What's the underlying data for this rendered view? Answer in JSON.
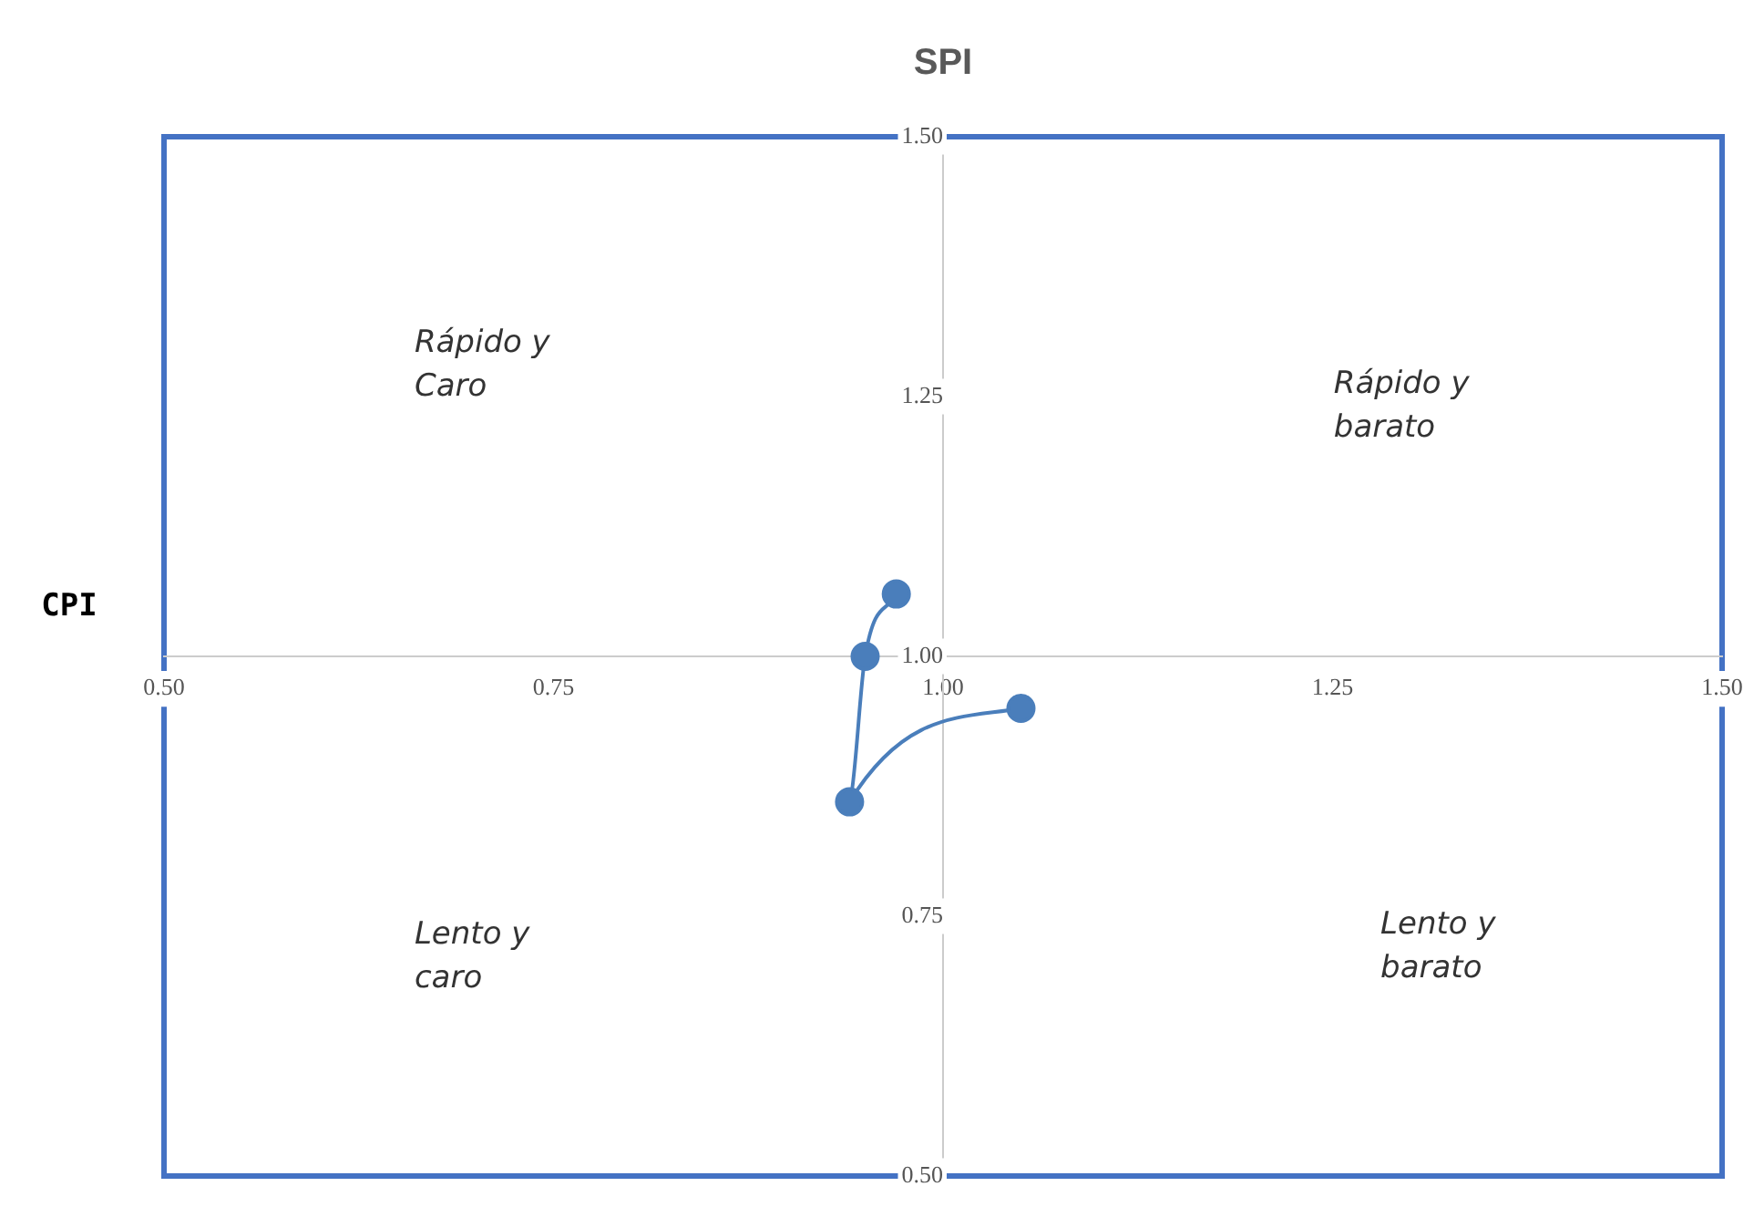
{
  "chart_data": {
    "type": "line",
    "title": "SPI",
    "ylabel": "CPI",
    "x": [
      1.05,
      0.94,
      0.95,
      0.97
    ],
    "series": [
      {
        "color": "#4a7ebb",
        "values": [
          0.95,
          0.86,
          1.0,
          1.06
        ]
      }
    ],
    "xlim": [
      0.5,
      1.5
    ],
    "ylim": [
      0.5,
      1.5
    ],
    "xticks": [
      {
        "value": 0.5,
        "label": "0.50"
      },
      {
        "value": 0.75,
        "label": "0.75"
      },
      {
        "value": 1.0,
        "label": "1.00"
      },
      {
        "value": 1.25,
        "label": "1.25"
      },
      {
        "value": 1.5,
        "label": "1.50"
      }
    ],
    "yticks": [
      {
        "value": 0.5,
        "label": "0.50"
      },
      {
        "value": 0.75,
        "label": "0.75"
      },
      {
        "value": 1.0,
        "label": "1.00"
      },
      {
        "value": 1.25,
        "label": "1.25"
      },
      {
        "value": 1.5,
        "label": "1.50"
      }
    ],
    "annotations": [
      "Rápido y Caro",
      "Rápido y barato",
      "Lento y caro",
      "Lento y barato"
    ],
    "grid": false,
    "legend": false,
    "marker": "circle",
    "line_style": "solid"
  }
}
